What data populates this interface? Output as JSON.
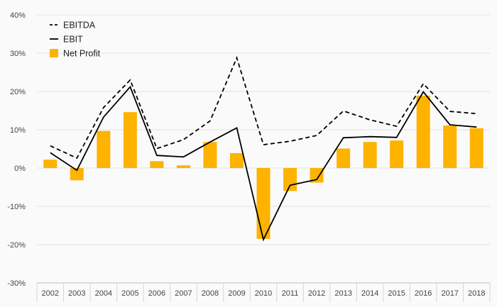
{
  "chart_data": {
    "type": "bar",
    "title": "",
    "xlabel": "",
    "ylabel": "",
    "categories": [
      "2002",
      "2003",
      "2004",
      "2005",
      "2006",
      "2007",
      "2008",
      "2009",
      "2010",
      "2011",
      "2012",
      "2013",
      "2014",
      "2015",
      "2016",
      "2017",
      "2018"
    ],
    "ylim": [
      -30,
      40
    ],
    "yticks": [
      -30,
      -20,
      -10,
      0,
      10,
      20,
      30,
      40
    ],
    "ytick_labels": [
      "-30%",
      "-20%",
      "-10%",
      "0%",
      "10%",
      "20%",
      "30%",
      "40%"
    ],
    "grid": true,
    "legend_position": "top-left",
    "series": [
      {
        "name": "EBITDA",
        "type": "line",
        "style": "dashed",
        "color": "#000000",
        "values": [
          5.8,
          2.6,
          15.8,
          23.0,
          5.1,
          7.4,
          12.3,
          28.8,
          6.1,
          7.0,
          8.5,
          14.9,
          12.6,
          10.9,
          22.0,
          14.8,
          14.2
        ]
      },
      {
        "name": "EBIT",
        "type": "line",
        "style": "solid",
        "color": "#000000",
        "values": [
          4.0,
          -0.6,
          13.3,
          21.2,
          3.3,
          2.9,
          6.8,
          10.5,
          -18.7,
          -4.5,
          -3.0,
          7.9,
          8.2,
          8.0,
          19.9,
          11.3,
          10.7
        ]
      },
      {
        "name": "Net Profit",
        "type": "bar",
        "color": "#FDB300",
        "values": [
          2.2,
          -3.2,
          9.7,
          14.6,
          1.8,
          0.7,
          6.8,
          3.9,
          -18.5,
          -6.0,
          -3.8,
          5.1,
          6.8,
          7.2,
          18.9,
          11.1,
          10.4
        ]
      }
    ]
  }
}
